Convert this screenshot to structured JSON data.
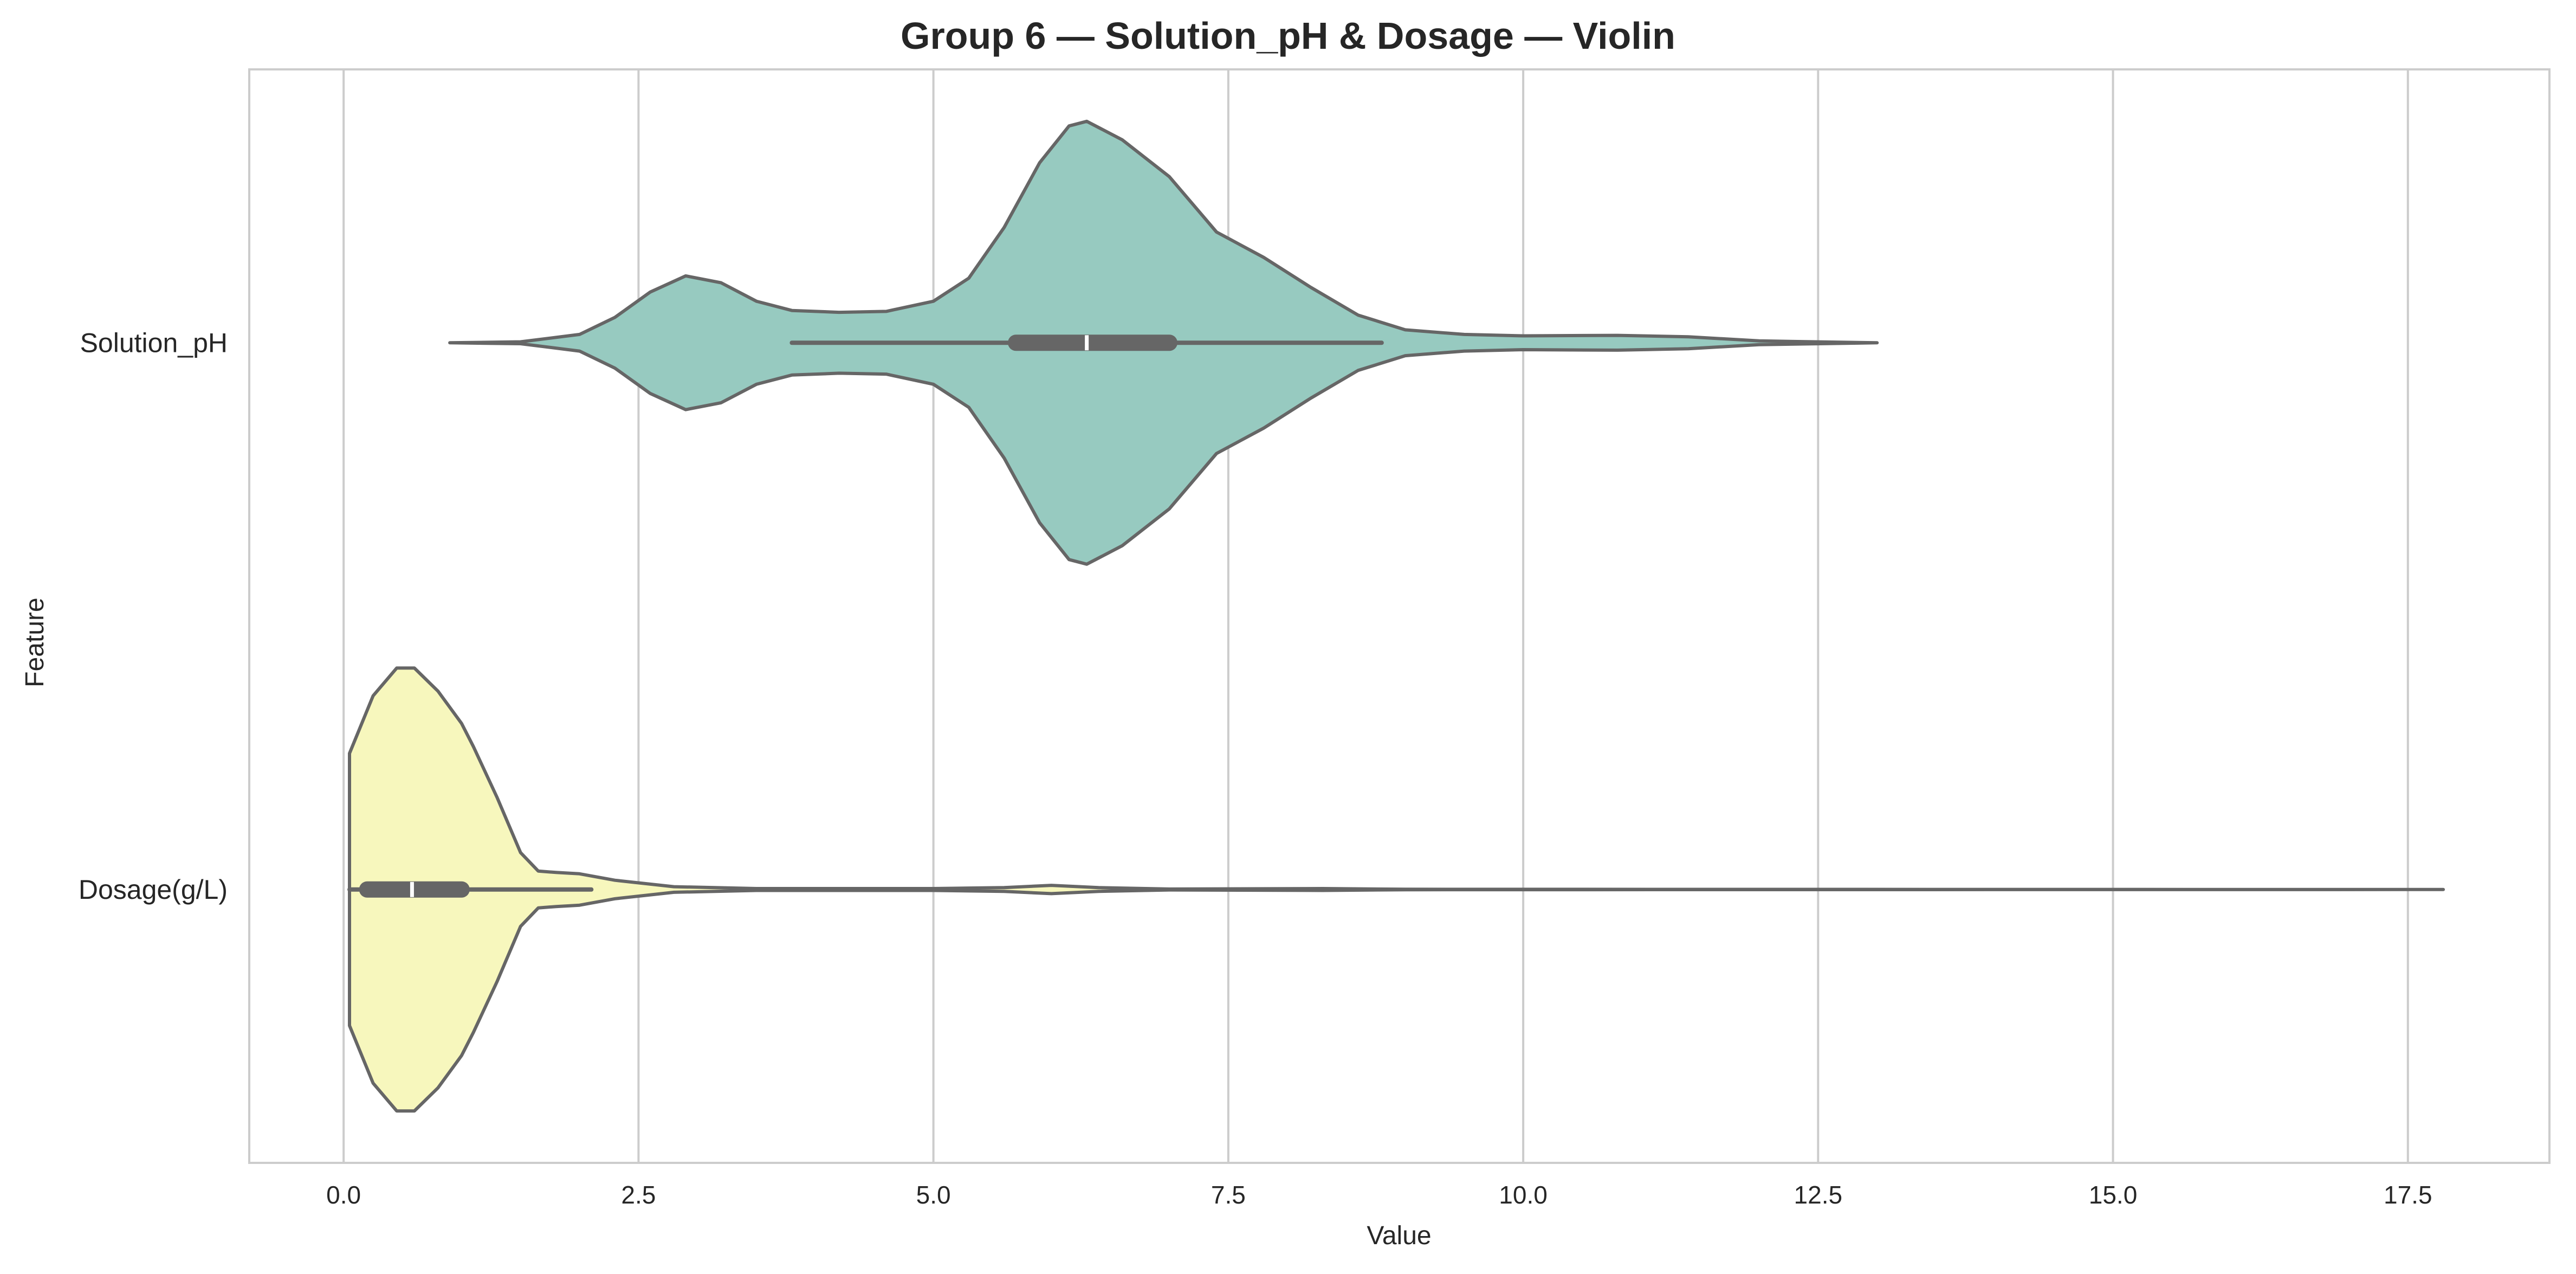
{
  "chart_data": {
    "type": "violin",
    "title": "Group 6 — Solution_pH & Dosage — Violin",
    "xlabel": "Value",
    "ylabel": "Feature",
    "xlim": [
      -0.8,
      18.7
    ],
    "xticks": [
      0.0,
      2.5,
      5.0,
      7.5,
      10.0,
      12.5,
      15.0,
      17.5
    ],
    "xtick_labels": [
      "0.0",
      "2.5",
      "5.0",
      "7.5",
      "10.0",
      "12.5",
      "15.0",
      "17.5"
    ],
    "orientation": "horizontal",
    "grid": "vertical",
    "categories": [
      "Solution_pH",
      "Dosage(g/L)"
    ],
    "series": [
      {
        "category": "Solution_pH",
        "color": "#97cac0",
        "min": 0.9,
        "q1": 5.7,
        "median": 6.3,
        "q3": 7.0,
        "whisker_low": 3.8,
        "whisker_high": 8.8,
        "max": 13.0,
        "density": [
          [
            0.9,
            0.0
          ],
          [
            1.5,
            0.002
          ],
          [
            2.0,
            0.018
          ],
          [
            2.3,
            0.055
          ],
          [
            2.6,
            0.11
          ],
          [
            2.9,
            0.145
          ],
          [
            3.2,
            0.13
          ],
          [
            3.5,
            0.09
          ],
          [
            3.8,
            0.07
          ],
          [
            4.2,
            0.066
          ],
          [
            4.6,
            0.068
          ],
          [
            5.0,
            0.09
          ],
          [
            5.3,
            0.14
          ],
          [
            5.6,
            0.25
          ],
          [
            5.9,
            0.39
          ],
          [
            6.15,
            0.47
          ],
          [
            6.3,
            0.48
          ],
          [
            6.6,
            0.44
          ],
          [
            7.0,
            0.36
          ],
          [
            7.4,
            0.24
          ],
          [
            7.8,
            0.185
          ],
          [
            8.2,
            0.12
          ],
          [
            8.6,
            0.06
          ],
          [
            9.0,
            0.028
          ],
          [
            9.5,
            0.018
          ],
          [
            10.0,
            0.015
          ],
          [
            10.8,
            0.016
          ],
          [
            11.4,
            0.013
          ],
          [
            12.0,
            0.004
          ],
          [
            13.0,
            0.0
          ]
        ]
      },
      {
        "category": "Dosage(g/L)",
        "color": "#f7f7bd",
        "min": 0.05,
        "q1": 0.2,
        "median": 0.58,
        "q3": 1.0,
        "whisker_low": 0.05,
        "whisker_high": 2.1,
        "max": 17.8,
        "density": [
          [
            0.05,
            0.295
          ],
          [
            0.25,
            0.42
          ],
          [
            0.45,
            0.48
          ],
          [
            0.6,
            0.48
          ],
          [
            0.8,
            0.43
          ],
          [
            1.0,
            0.36
          ],
          [
            1.1,
            0.31
          ],
          [
            1.3,
            0.2
          ],
          [
            1.5,
            0.08
          ],
          [
            1.65,
            0.04
          ],
          [
            1.8,
            0.037
          ],
          [
            2.0,
            0.034
          ],
          [
            2.3,
            0.02
          ],
          [
            2.8,
            0.006
          ],
          [
            3.5,
            0.002
          ],
          [
            5.0,
            0.002
          ],
          [
            5.6,
            0.004
          ],
          [
            6.0,
            0.009
          ],
          [
            6.4,
            0.004
          ],
          [
            7.0,
            0.001
          ],
          [
            8.3,
            0.002
          ],
          [
            9.0,
            0.0005
          ],
          [
            12.0,
            0.0003
          ],
          [
            17.8,
            0.0
          ]
        ]
      }
    ]
  }
}
